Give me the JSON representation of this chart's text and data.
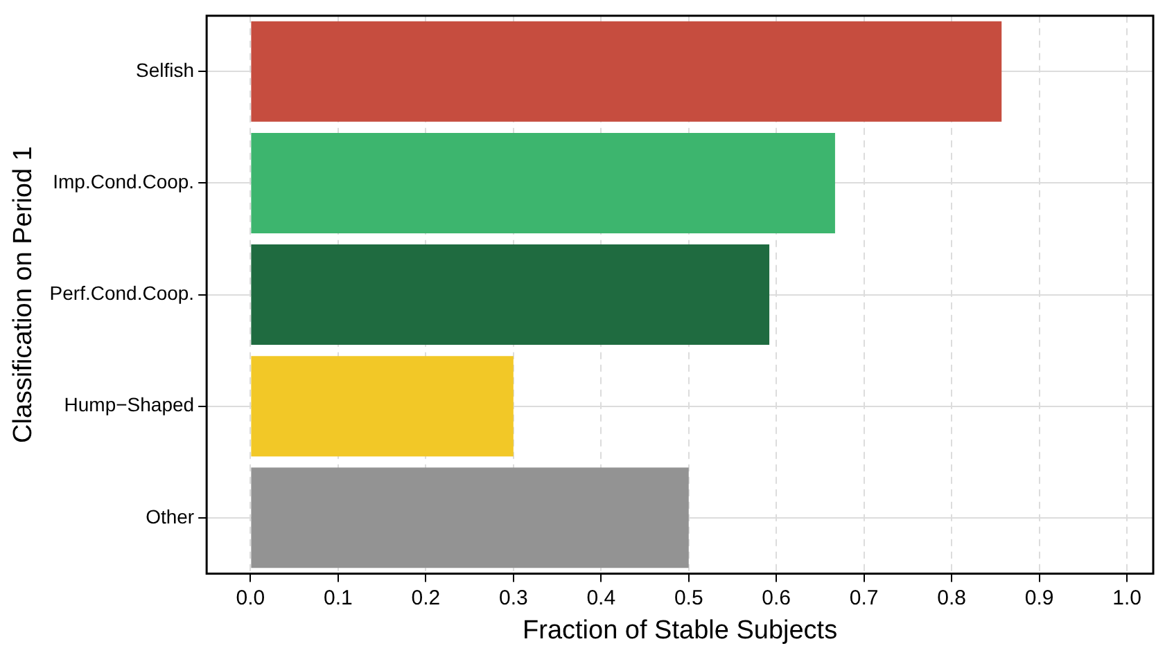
{
  "chart_data": {
    "type": "bar",
    "orientation": "horizontal",
    "xlabel": "Fraction of Stable Subjects",
    "ylabel": "Classification on Period 1",
    "categories": [
      "Selfish",
      "Imp.Cond.Coop.",
      "Perf.Cond.Coop.",
      "Hump−Shaped",
      "Other"
    ],
    "values": [
      0.857,
      0.667,
      0.592,
      0.3,
      0.5
    ],
    "colors": [
      "#c64d3f",
      "#3db56e",
      "#1f6b40",
      "#f2c827",
      "#939393"
    ],
    "xlim": [
      -0.05,
      1.03
    ],
    "xticks": [
      {
        "value": 0,
        "label": "0.0"
      },
      0.1,
      0.2,
      0.3,
      0.4,
      0.5,
      0.6,
      0.7,
      0.8,
      0.9,
      {
        "value": 1,
        "label": "1.0"
      }
    ],
    "grid": true
  }
}
